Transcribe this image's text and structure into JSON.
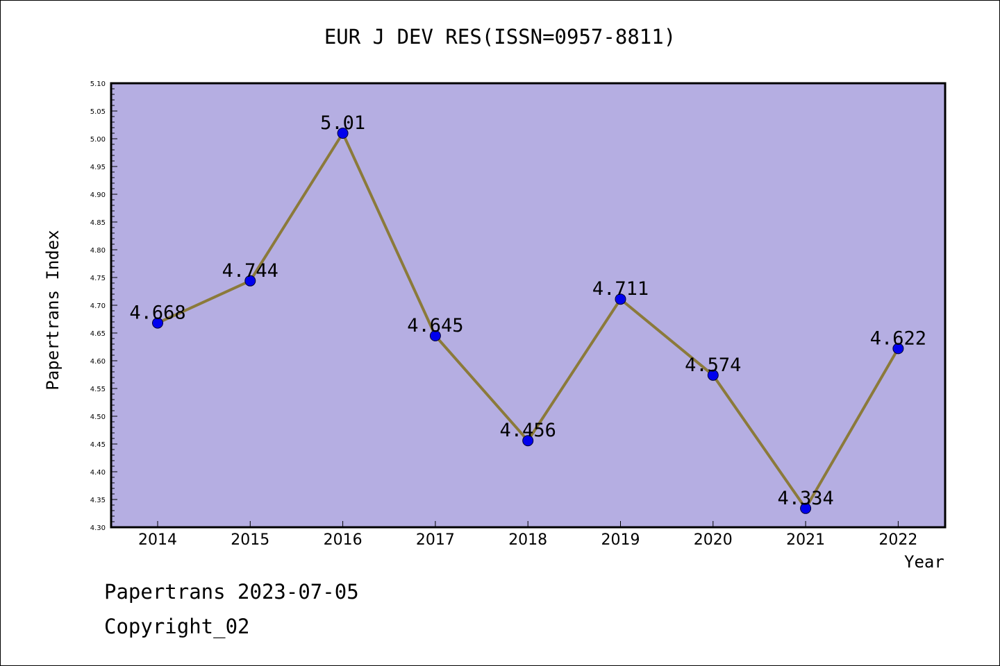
{
  "chart_data": {
    "type": "line",
    "title": "EUR J DEV RES(ISSN=0957-8811)",
    "xlabel": "Year",
    "ylabel": "Papertrans Index",
    "categories": [
      "2014",
      "2015",
      "2016",
      "2017",
      "2018",
      "2019",
      "2020",
      "2021",
      "2022"
    ],
    "series": [
      {
        "values": [
          4.668,
          4.744,
          5.01,
          4.645,
          4.456,
          4.711,
          4.574,
          4.334,
          4.622
        ]
      }
    ],
    "data_labels": [
      "4.668",
      "4.744",
      "5.01",
      "4.645",
      "4.456",
      "4.711",
      "4.574",
      "4.334",
      "4.622"
    ],
    "ylim": [
      4.3,
      5.1
    ],
    "yticks": [
      "4.30",
      "4.35",
      "4.40",
      "4.45",
      "4.50",
      "4.55",
      "4.60",
      "4.65",
      "4.70",
      "4.75",
      "4.80",
      "4.85",
      "4.90",
      "4.95",
      "5.00",
      "5.05",
      "5.10"
    ],
    "grid": false,
    "colors": {
      "plot_background": "#b5aee2",
      "line": "#8b7a3a",
      "marker": "#0000ee"
    }
  },
  "footer": {
    "line1": "Papertrans 2023-07-05",
    "line2": "Copyright_02"
  }
}
